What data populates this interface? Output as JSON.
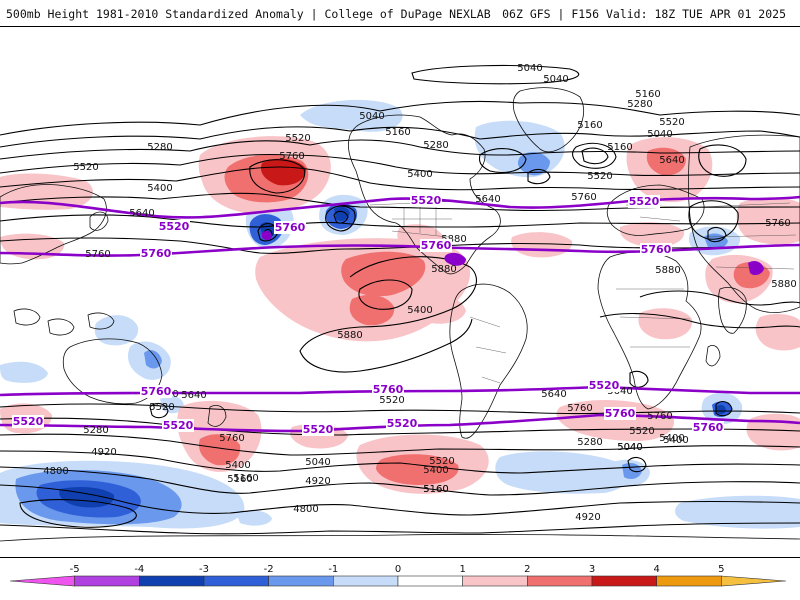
{
  "header": {
    "left_title": "500mb Height 1981-2010 Standardized Anomaly | College of DuPage NEXLAB",
    "right_title": "06Z GFS | F156 Valid: 18Z TUE APR 01 2025"
  },
  "colors": {
    "contour": "#000000",
    "zonal_line": "#8a00c8",
    "coast": "#111111",
    "anomaly": {
      "-5": "#ee55ee",
      "-4": "#8800cc",
      "-3": "#1040b0",
      "-2": "#4070e0",
      "-1": "#b8d4f8",
      "0": "#ffffff",
      "1": "#f8c8cc",
      "2": "#f07878",
      "3": "#e03030",
      "4": "#b00000",
      "5": "#f0a020"
    }
  },
  "colorbar": {
    "ticks": [
      "-5",
      "-4",
      "-3",
      "-2",
      "-1",
      "0",
      "1",
      "2",
      "3",
      "4",
      "5"
    ],
    "bins": [
      {
        "from": -6,
        "to": -5,
        "color": "#ee55ee"
      },
      {
        "from": -5,
        "to": -4,
        "color": "#b040e0"
      },
      {
        "from": -4,
        "to": -3,
        "color": "#1040b0"
      },
      {
        "from": -3,
        "to": -2,
        "color": "#3060d8"
      },
      {
        "from": -2,
        "to": -1,
        "color": "#6a98ec"
      },
      {
        "from": -1,
        "to": 0,
        "color": "#c6dcf8"
      },
      {
        "from": 0,
        "to": 1,
        "color": "#ffffff"
      },
      {
        "from": 1,
        "to": 2,
        "color": "#f8c4c8"
      },
      {
        "from": 2,
        "to": 3,
        "color": "#f07070"
      },
      {
        "from": 3,
        "to": 4,
        "color": "#c81818"
      },
      {
        "from": 4,
        "to": 5,
        "color": "#ee9a10"
      },
      {
        "from": 5,
        "to": 6,
        "color": "#f5c040"
      }
    ]
  },
  "contour_labels": [
    "5040",
    "5040",
    "5040",
    "5160",
    "5280",
    "5160",
    "5280",
    "5520",
    "5760",
    "5400",
    "5520",
    "5640",
    "5760",
    "5880",
    "5880",
    "5760",
    "5520",
    "5640",
    "5400",
    "5160",
    "5280",
    "5040",
    "5520",
    "5640",
    "5760",
    "5880",
    "5400",
    "5280",
    "5160",
    "4920",
    "4800",
    "4800",
    "5040",
    "4920",
    "5160",
    "5400",
    "5520",
    "5760",
    "5640",
    "5280",
    "5040",
    "5760",
    "5640",
    "5880",
    "5880",
    "5160",
    "5280",
    "5640",
    "5400",
    "5520",
    "5760",
    "5520",
    "5400",
    "5040",
    "4920",
    "5160",
    "5520",
    "5400",
    "5640",
    "5160"
  ],
  "zonal_labels": [
    "5520",
    "5520",
    "5760",
    "5760",
    "5760",
    "5520",
    "5760",
    "5760",
    "5520",
    "5520",
    "5520",
    "5760",
    "5760",
    "5520",
    "5520",
    "5760"
  ]
}
